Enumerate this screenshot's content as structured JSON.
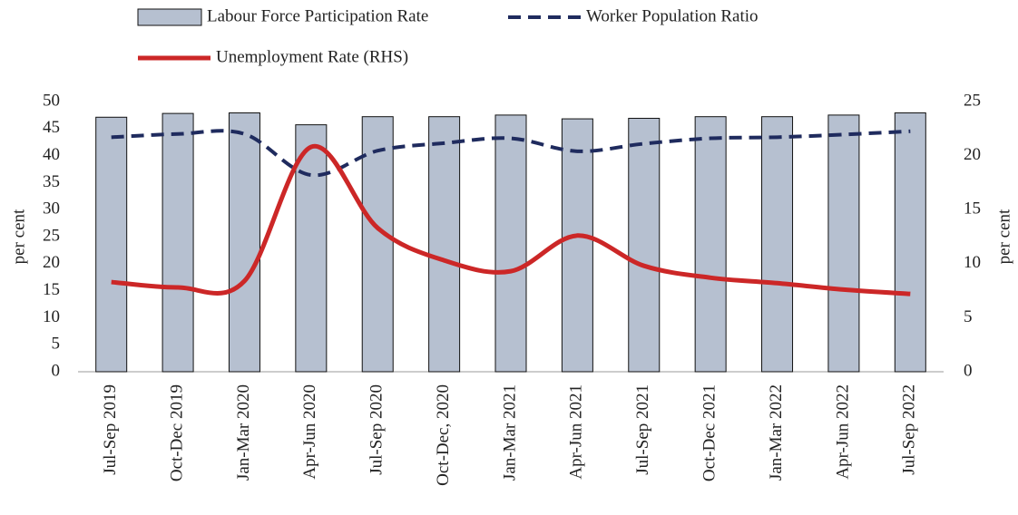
{
  "chart_data": {
    "type": "bar-line",
    "categories": [
      "Jul-Sep 2019",
      "Oct-Dec 2019",
      "Jan-Mar 2020",
      "Apr-Jun 2020",
      "Jul-Sep 2020",
      "Oct-Dec, 2020",
      "Jan-Mar 2021",
      "Apr-Jun 2021",
      "Jul-Sep 2021",
      "Oct-Dec 2021",
      "Jan-Mar 2022",
      "Apr-Jun 2022",
      "Jul-Sep 2022"
    ],
    "series": [
      {
        "name": "Labour Force Participation Rate",
        "type": "bar",
        "color": "#b6c0d0",
        "values": [
          47.1,
          47.8,
          47.9,
          45.7,
          47.2,
          47.2,
          47.5,
          46.8,
          46.9,
          47.2,
          47.2,
          47.5,
          47.9
        ]
      },
      {
        "name": "Worker Population Ratio",
        "type": "dashed-line",
        "color": "#1f2b5e",
        "values": [
          43.4,
          44.0,
          44.0,
          36.4,
          40.9,
          42.3,
          43.2,
          40.8,
          42.2,
          43.2,
          43.4,
          43.9,
          44.5
        ]
      },
      {
        "name": "Unemployment Rate (RHS)",
        "type": "line",
        "color": "#cc2727",
        "axis": "y2",
        "values": [
          8.3,
          7.8,
          8.4,
          20.8,
          13.3,
          10.3,
          9.3,
          12.6,
          9.8,
          8.7,
          8.2,
          7.6,
          7.2
        ]
      }
    ],
    "ylabel": "per cent",
    "y2label": "per cent",
    "ylim": [
      0,
      50
    ],
    "yticks": [
      0,
      5,
      10,
      15,
      20,
      25,
      30,
      35,
      40,
      45,
      50
    ],
    "y2lim": [
      0,
      25
    ],
    "y2ticks": [
      0,
      5,
      10,
      15,
      20,
      25
    ]
  }
}
